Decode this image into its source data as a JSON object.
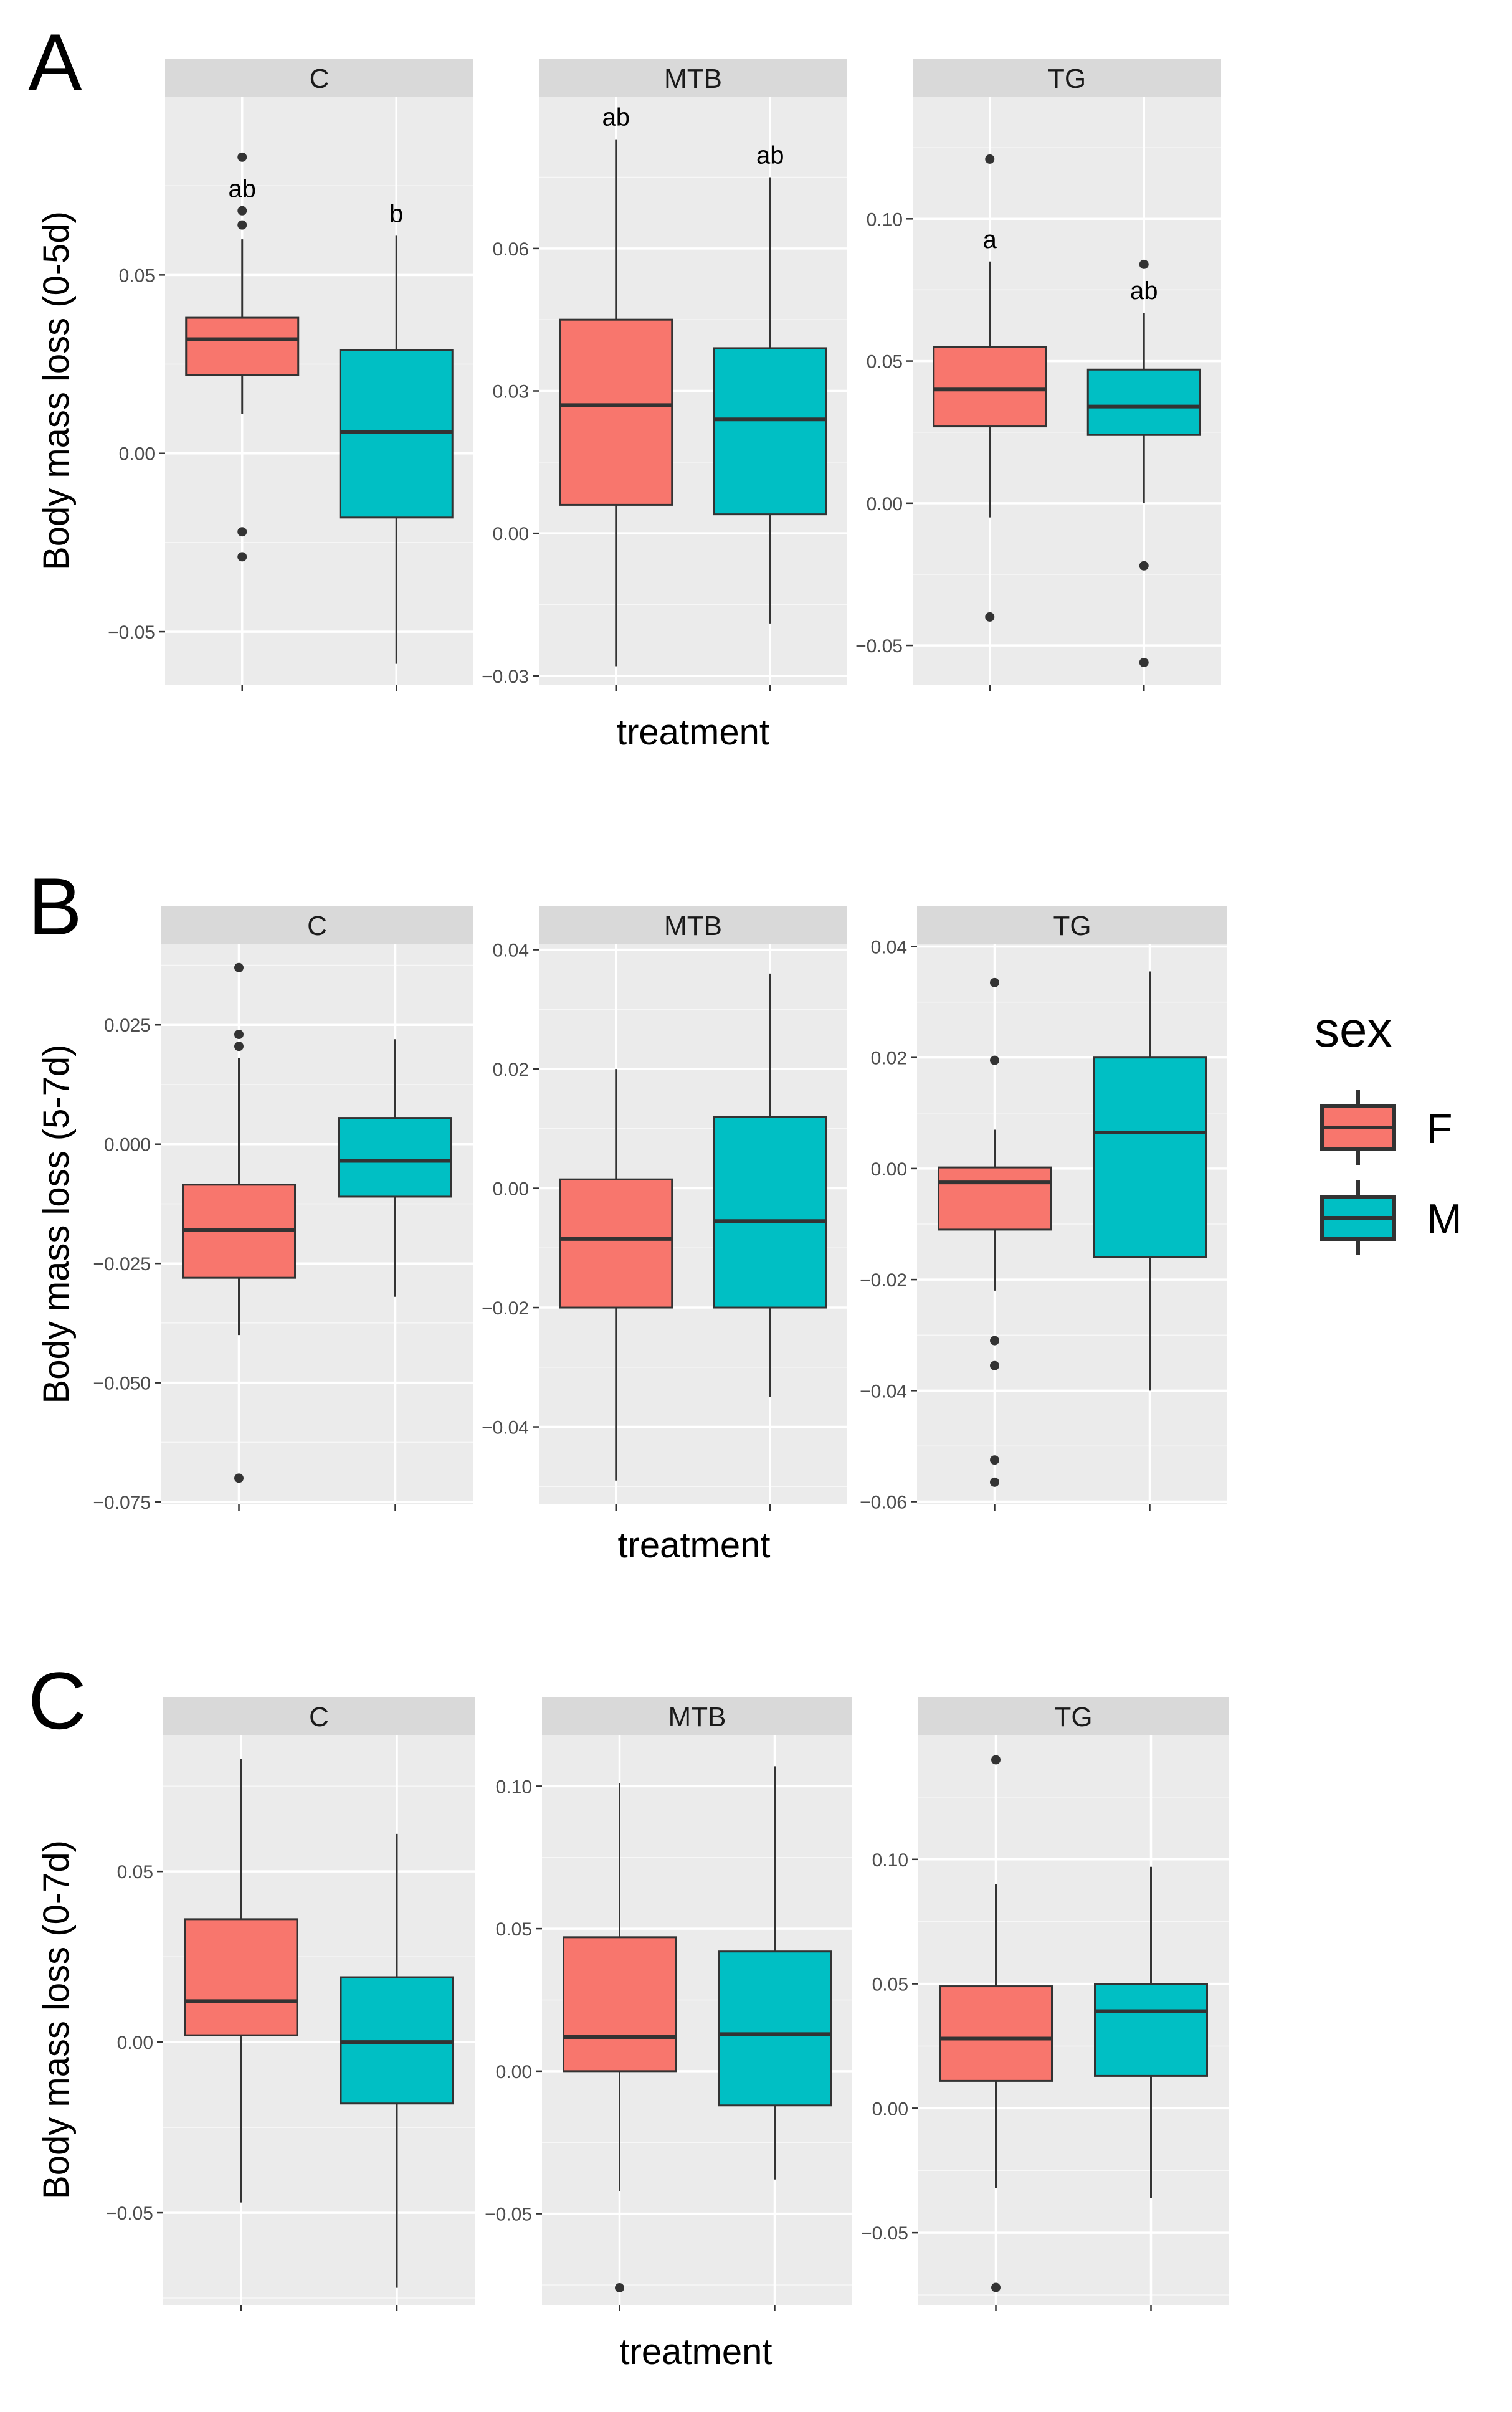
{
  "colors": {
    "female": "#F8766D",
    "male": "#00BFC4",
    "panel_bg": "#EBEBEB",
    "strip_bg": "#D9D9D9",
    "grid": "#FFFFFF",
    "outline": "#333333",
    "text": "#000000",
    "tick_text": "#4D4D4D"
  },
  "legend": {
    "title": "sex",
    "items": [
      {
        "label": "F",
        "color": "#F8766D"
      },
      {
        "label": "M",
        "color": "#00BFC4"
      }
    ]
  },
  "chart_data": [
    {
      "type": "box",
      "panel_label": "A",
      "ylabel": "Body mass loss (0-5d)",
      "xlabel": "treatment",
      "facets": [
        {
          "name": "C",
          "ylim": [
            -0.065,
            0.1
          ],
          "yticks": [
            -0.05,
            0.0,
            0.05
          ],
          "ytick_labels": [
            "−0.05",
            "0.00",
            "0.05"
          ],
          "boxes": [
            {
              "sex": "F",
              "min": 0.011,
              "q1": 0.022,
              "median": 0.032,
              "q3": 0.038,
              "max": 0.06,
              "outliers": [
                0.083,
                0.068,
                0.064,
                -0.022,
                -0.029
              ],
              "label": "ab"
            },
            {
              "sex": "M",
              "min": -0.059,
              "q1": -0.018,
              "median": 0.006,
              "q3": 0.029,
              "max": 0.061,
              "outliers": [],
              "label": "b"
            }
          ]
        },
        {
          "name": "MTB",
          "ylim": [
            -0.032,
            0.092
          ],
          "yticks": [
            -0.03,
            0.0,
            0.03,
            0.06
          ],
          "ytick_labels": [
            "−0.03",
            "0.00",
            "0.03",
            "0.06"
          ],
          "boxes": [
            {
              "sex": "F",
              "min": -0.028,
              "q1": 0.006,
              "median": 0.027,
              "q3": 0.045,
              "max": 0.083,
              "outliers": [],
              "label": "ab"
            },
            {
              "sex": "M",
              "min": -0.019,
              "q1": 0.004,
              "median": 0.024,
              "q3": 0.039,
              "max": 0.075,
              "outliers": [],
              "label": "ab"
            }
          ]
        },
        {
          "name": "TG",
          "ylim": [
            -0.064,
            0.143
          ],
          "yticks": [
            -0.05,
            0.0,
            0.05,
            0.1
          ],
          "ytick_labels": [
            "−0.05",
            "0.00",
            "0.05",
            "0.10"
          ],
          "boxes": [
            {
              "sex": "F",
              "min": -0.005,
              "q1": 0.027,
              "median": 0.04,
              "q3": 0.055,
              "max": 0.085,
              "outliers": [
                0.121,
                -0.04
              ],
              "label": "a"
            },
            {
              "sex": "M",
              "min": 0.0,
              "q1": 0.024,
              "median": 0.034,
              "q3": 0.047,
              "max": 0.067,
              "outliers": [
                0.084,
                -0.022,
                -0.056
              ],
              "label": "ab"
            }
          ]
        }
      ]
    },
    {
      "type": "box",
      "panel_label": "B",
      "ylabel": "Body mass loss (5-7d)",
      "xlabel": "treatment",
      "facets": [
        {
          "name": "C",
          "ylim": [
            -0.0755,
            0.042
          ],
          "yticks": [
            -0.075,
            -0.05,
            -0.025,
            0.0,
            0.025
          ],
          "ytick_labels": [
            "−0.075",
            "−0.050",
            "−0.025",
            "0.000",
            "0.025"
          ],
          "boxes": [
            {
              "sex": "F",
              "min": -0.04,
              "q1": -0.028,
              "median": -0.018,
              "q3": -0.0085,
              "max": 0.018,
              "outliers": [
                0.037,
                0.023,
                0.0205,
                -0.07
              ],
              "label": ""
            },
            {
              "sex": "M",
              "min": -0.032,
              "q1": -0.011,
              "median": -0.0035,
              "q3": 0.0055,
              "max": 0.022,
              "outliers": [],
              "label": ""
            }
          ]
        },
        {
          "name": "MTB",
          "ylim": [
            -0.053,
            0.041
          ],
          "yticks": [
            -0.04,
            -0.02,
            0.0,
            0.02,
            0.04
          ],
          "ytick_labels": [
            "−0.04",
            "−0.02",
            "0.00",
            "0.02",
            "0.04"
          ],
          "boxes": [
            {
              "sex": "F",
              "min": -0.049,
              "q1": -0.02,
              "median": -0.0085,
              "q3": 0.0015,
              "max": 0.02,
              "outliers": [],
              "label": ""
            },
            {
              "sex": "M",
              "min": -0.035,
              "q1": -0.02,
              "median": -0.0055,
              "q3": 0.012,
              "max": 0.036,
              "outliers": [],
              "label": ""
            }
          ]
        },
        {
          "name": "TG",
          "ylim": [
            -0.0605,
            0.0405
          ],
          "yticks": [
            -0.06,
            -0.04,
            -0.02,
            0.0,
            0.02,
            0.04
          ],
          "ytick_labels": [
            "−0.06",
            "−0.04",
            "−0.02",
            "0.00",
            "0.02",
            "0.04"
          ],
          "boxes": [
            {
              "sex": "F",
              "min": -0.022,
              "q1": -0.011,
              "median": -0.0025,
              "q3": 0.0002,
              "max": 0.007,
              "outliers": [
                0.0335,
                0.0195,
                -0.031,
                -0.0355,
                -0.0525,
                -0.0565
              ],
              "label": ""
            },
            {
              "sex": "M",
              "min": -0.04,
              "q1": -0.016,
              "median": 0.0065,
              "q3": 0.02,
              "max": 0.0355,
              "outliers": [],
              "label": ""
            }
          ]
        }
      ]
    },
    {
      "type": "box",
      "panel_label": "C",
      "ylabel": "Body mass loss (0-7d)",
      "xlabel": "treatment",
      "facets": [
        {
          "name": "C",
          "ylim": [
            -0.077,
            0.09
          ],
          "yticks": [
            -0.05,
            0.0,
            0.05
          ],
          "ytick_labels": [
            "−0.05",
            "0.00",
            "0.05"
          ],
          "boxes": [
            {
              "sex": "F",
              "min": -0.047,
              "q1": 0.002,
              "median": 0.012,
              "q3": 0.036,
              "max": 0.083,
              "outliers": [],
              "label": ""
            },
            {
              "sex": "M",
              "min": -0.072,
              "q1": -0.018,
              "median": 0.0,
              "q3": 0.019,
              "max": 0.061,
              "outliers": [],
              "label": ""
            }
          ]
        },
        {
          "name": "MTB",
          "ylim": [
            -0.082,
            0.118
          ],
          "yticks": [
            -0.05,
            0.0,
            0.05,
            0.1
          ],
          "ytick_labels": [
            "−0.05",
            "0.00",
            "0.05",
            "0.10"
          ],
          "boxes": [
            {
              "sex": "F",
              "min": -0.042,
              "q1": 0.0,
              "median": 0.012,
              "q3": 0.047,
              "max": 0.101,
              "outliers": [
                -0.076
              ],
              "label": ""
            },
            {
              "sex": "M",
              "min": -0.038,
              "q1": -0.012,
              "median": 0.013,
              "q3": 0.042,
              "max": 0.107,
              "outliers": [],
              "label": ""
            }
          ]
        },
        {
          "name": "TG",
          "ylim": [
            -0.079,
            0.15
          ],
          "yticks": [
            -0.05,
            0.0,
            0.05,
            0.1
          ],
          "ytick_labels": [
            "−0.05",
            "0.00",
            "0.05",
            "0.10"
          ],
          "boxes": [
            {
              "sex": "F",
              "min": -0.032,
              "q1": 0.011,
              "median": 0.028,
              "q3": 0.049,
              "max": 0.09,
              "outliers": [
                0.14,
                -0.072
              ],
              "label": ""
            },
            {
              "sex": "M",
              "min": -0.036,
              "q1": 0.013,
              "median": 0.039,
              "q3": 0.05,
              "max": 0.097,
              "outliers": [],
              "label": ""
            }
          ]
        }
      ]
    }
  ]
}
